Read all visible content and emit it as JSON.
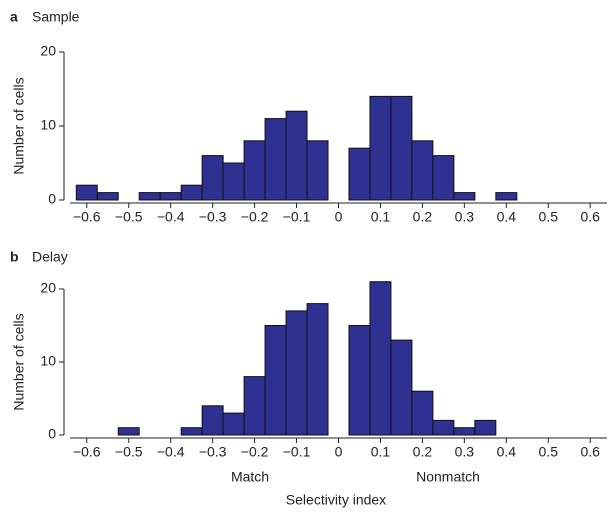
{
  "chart_data": [
    {
      "type": "histogram",
      "panel": "a",
      "title": "Sample",
      "ylabel": "Number of cells",
      "bins": [
        -0.625,
        -0.575,
        -0.525,
        -0.475,
        -0.425,
        -0.375,
        -0.325,
        -0.275,
        -0.225,
        -0.175,
        -0.125,
        -0.075,
        -0.025,
        0.025,
        0.075,
        0.125,
        0.175,
        0.225,
        0.275,
        0.325,
        0.375,
        0.425,
        0.475,
        0.525,
        0.575,
        0.625
      ],
      "values": [
        2,
        1,
        0,
        1,
        1,
        2,
        6,
        5,
        8,
        11,
        12,
        8,
        0,
        7,
        14,
        14,
        8,
        6,
        1,
        0,
        1,
        0,
        0,
        0,
        0
      ],
      "color": "#2e3192",
      "xlim": [
        -0.64,
        0.64
      ],
      "xticks": [
        {
          "value": -0.6,
          "label": "−0.6"
        },
        {
          "value": -0.5,
          "label": "−0.5"
        },
        {
          "value": -0.4,
          "label": "−0.4"
        },
        {
          "value": -0.3,
          "label": "−0.3"
        },
        {
          "value": -0.2,
          "label": "−0.2"
        },
        {
          "value": -0.1,
          "label": "−0.1"
        },
        0,
        0.1,
        0.2,
        0.3,
        0.4,
        0.5,
        0.6
      ],
      "ylim": [
        0,
        20
      ],
      "yticks": [
        0,
        10,
        20
      ]
    },
    {
      "type": "histogram",
      "panel": "b",
      "title": "Delay",
      "ylabel": "Number of cells",
      "xlabel": "Selectivity index",
      "annotations": [
        "Match",
        "Nonmatch"
      ],
      "bins": [
        -0.625,
        -0.575,
        -0.525,
        -0.475,
        -0.425,
        -0.375,
        -0.325,
        -0.275,
        -0.225,
        -0.175,
        -0.125,
        -0.075,
        -0.025,
        0.025,
        0.075,
        0.125,
        0.175,
        0.225,
        0.275,
        0.325,
        0.375,
        0.425,
        0.475,
        0.525,
        0.575,
        0.625
      ],
      "values": [
        0,
        0,
        1,
        0,
        0,
        1,
        4,
        3,
        8,
        15,
        17,
        18,
        0,
        15,
        21,
        13,
        6,
        2,
        1,
        2,
        0,
        0,
        0,
        0,
        0
      ],
      "color": "#2e3192",
      "xlim": [
        -0.64,
        0.64
      ],
      "xticks": [
        {
          "value": -0.6,
          "label": "−0.6"
        },
        {
          "value": -0.5,
          "label": "−0.5"
        },
        {
          "value": -0.4,
          "label": "−0.4"
        },
        {
          "value": -0.3,
          "label": "−0.3"
        },
        {
          "value": -0.2,
          "label": "−0.2"
        },
        {
          "value": -0.1,
          "label": "−0.1"
        },
        0,
        0.1,
        0.2,
        0.3,
        0.4,
        0.5,
        0.6
      ],
      "ylim": [
        0,
        20
      ],
      "yticks": [
        0,
        10,
        20
      ]
    }
  ]
}
